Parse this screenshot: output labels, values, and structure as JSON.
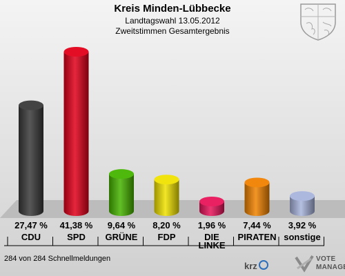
{
  "header": {
    "title": "Kreis Minden-Lübbecke",
    "subtitle": "Landtagswahl 13.05.2012",
    "subtitle2": "Zweitstimmen Gesamtergebnis"
  },
  "footer": {
    "status": "284 von 284 Schnellmeldungen",
    "krz_logo": "krz",
    "vm_line1": "VOTE",
    "vm_line2": "MANAGER"
  },
  "chart_data": {
    "type": "bar",
    "categories": [
      "CDU",
      "SPD",
      "GRÜNE",
      "FDP",
      "DIE LINKE",
      "PIRATEN",
      "sonstige"
    ],
    "values": [
      27.47,
      41.38,
      9.64,
      8.2,
      1.96,
      7.44,
      3.92
    ],
    "value_labels": [
      "27,47 %",
      "41,38 %",
      "9,64 %",
      "8,20 %",
      "1,96 %",
      "7,44 %",
      "3,92 %"
    ],
    "colors": [
      "#3a3a3a",
      "#e2001a",
      "#46b400",
      "#f0e200",
      "#e8145a",
      "#f08200",
      "#a8b4dc"
    ],
    "ylim": [
      0,
      45
    ]
  }
}
